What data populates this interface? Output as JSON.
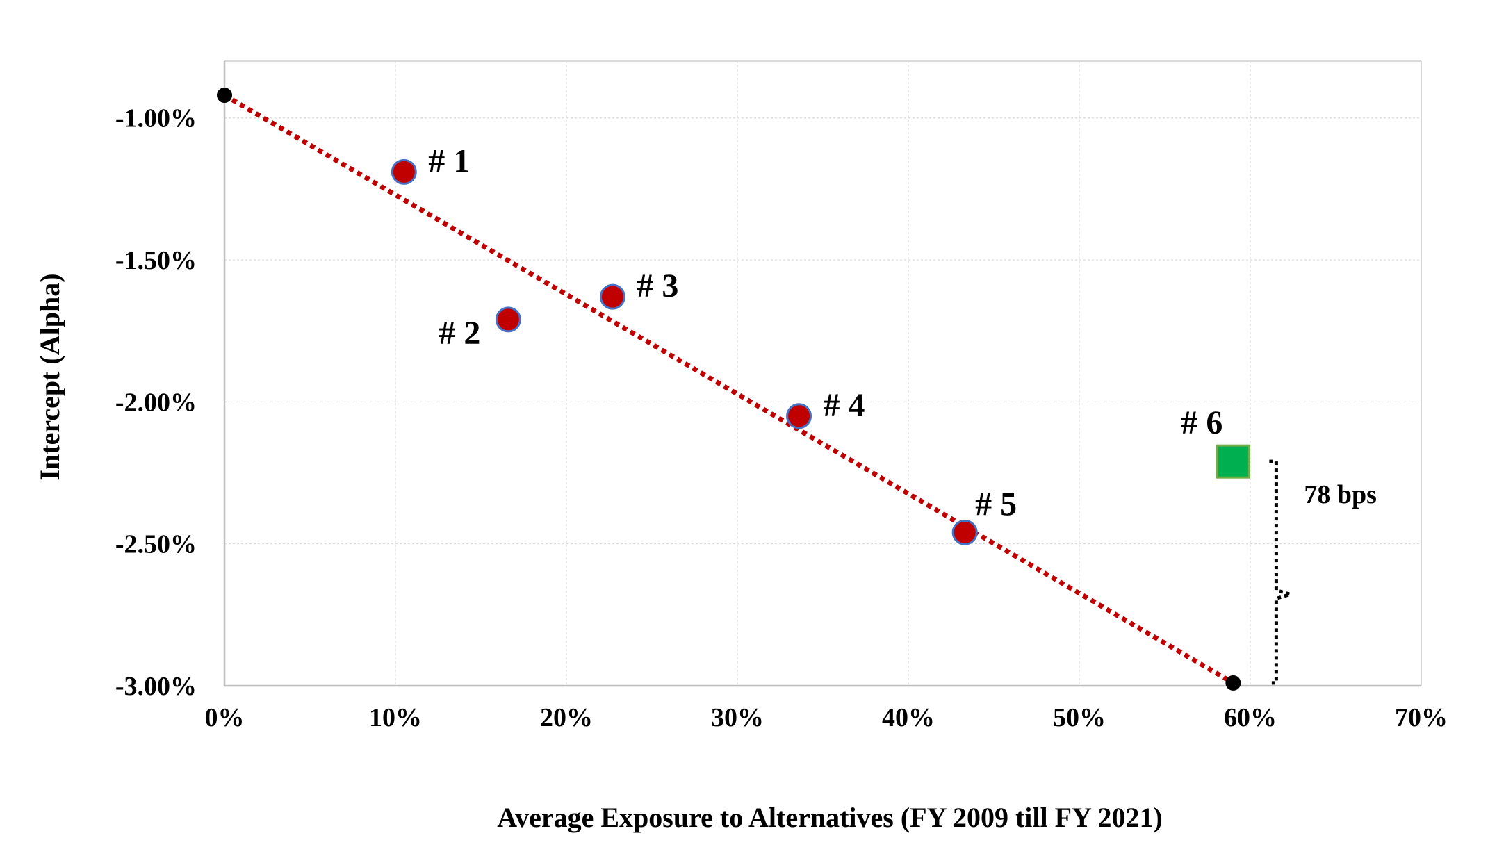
{
  "chart_data": {
    "type": "scatter",
    "title": "",
    "xlabel": "Average Exposure to Alternatives (FY 2009 till FY 2021)",
    "ylabel": "Intercept (Alpha)",
    "xlim": [
      0,
      70
    ],
    "ylim": [
      -3.0,
      -0.8
    ],
    "x_ticks": [
      {
        "value": 0,
        "label": "0%"
      },
      {
        "value": 10,
        "label": "10%"
      },
      {
        "value": 20,
        "label": "20%"
      },
      {
        "value": 30,
        "label": "30%"
      },
      {
        "value": 40,
        "label": "40%"
      },
      {
        "value": 50,
        "label": "50%"
      },
      {
        "value": 60,
        "label": "60%"
      },
      {
        "value": 70,
        "label": "70%"
      }
    ],
    "y_ticks": [
      {
        "value": -1.0,
        "label": "-1.00%"
      },
      {
        "value": -1.5,
        "label": "-1.50%"
      },
      {
        "value": -2.0,
        "label": "-2.00%"
      },
      {
        "value": -2.5,
        "label": "-2.50%"
      },
      {
        "value": -3.0,
        "label": "-3.00%"
      }
    ],
    "grid": true,
    "points": [
      {
        "label": "# 1",
        "x": 10.5,
        "y": -1.19,
        "label_pos": "right"
      },
      {
        "label": "# 2",
        "x": 16.6,
        "y": -1.71,
        "label_pos": "left"
      },
      {
        "label": "# 3",
        "x": 22.7,
        "y": -1.63,
        "label_pos": "right"
      },
      {
        "label": "# 4",
        "x": 33.6,
        "y": -2.05,
        "label_pos": "right"
      },
      {
        "label": "# 5",
        "x": 43.3,
        "y": -2.46,
        "label_pos": "above-right"
      }
    ],
    "highlight_point": {
      "label": "# 6",
      "x": 59.0,
      "y": -2.21,
      "label_pos": "above-left"
    },
    "trendline": {
      "x": [
        0.0,
        59.0
      ],
      "y": [
        -0.92,
        -2.99
      ]
    },
    "annotation": {
      "label": "78 bps",
      "x": 59.0,
      "y_top": -2.21,
      "y_bottom": -2.99
    },
    "colors": {
      "point_fill": "#c00000",
      "point_stroke": "#4472c4",
      "trendline": "#c00000",
      "highlight_fill": "#00b050",
      "highlight_stroke": "#70ad47",
      "endpoint": "#000000",
      "grid": "#d9d9d9",
      "axis": "#bfbfbf",
      "bracket": "#000000"
    }
  }
}
